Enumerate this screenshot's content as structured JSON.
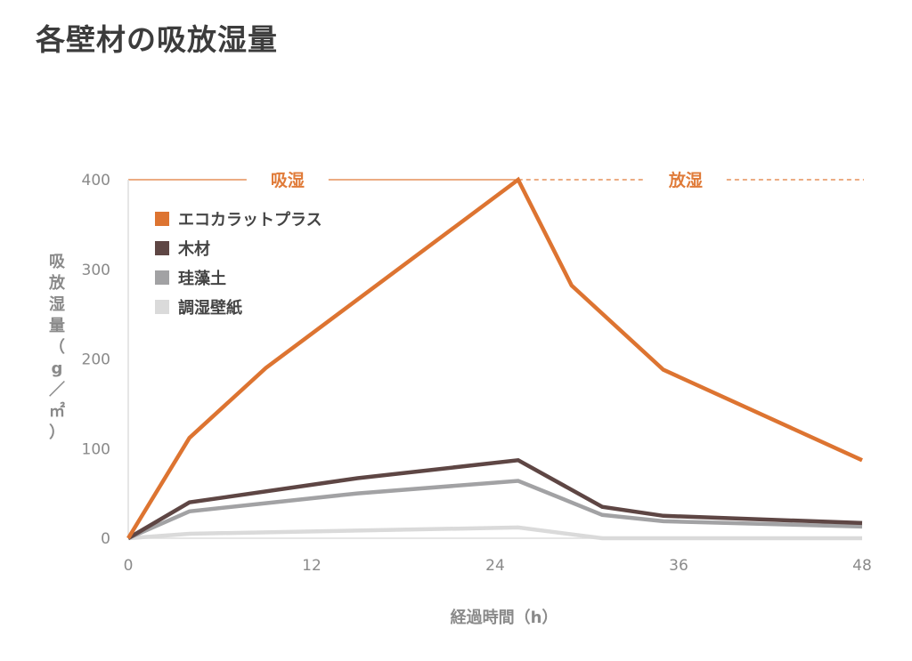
{
  "title": "各壁材の吸放湿量",
  "chart_data": {
    "type": "line",
    "xlabel": "経過時間（h）",
    "ylabel": "吸放湿量（g／㎡）",
    "xlim": [
      0,
      48
    ],
    "ylim": [
      0,
      400
    ],
    "xticks": [
      0,
      12,
      24,
      36,
      48
    ],
    "yticks": [
      0,
      100,
      200,
      300,
      400
    ],
    "legend_position": "top-left",
    "phases": [
      {
        "label": "吸湿",
        "from": 0,
        "to": 25.5,
        "style": "solid"
      },
      {
        "label": "放湿",
        "from": 25.5,
        "to": 48,
        "style": "dashed"
      }
    ],
    "phase_color": "#e07b39",
    "series": [
      {
        "name": "エコカラットプラス",
        "color": "#dd7431",
        "x": [
          0,
          4,
          9,
          25.5,
          29,
          35,
          48
        ],
        "y": [
          0,
          112,
          190,
          400,
          282,
          188,
          87
        ]
      },
      {
        "name": "木材",
        "color": "#5e4644",
        "x": [
          0,
          4,
          15,
          25.5,
          31,
          35,
          48
        ],
        "y": [
          0,
          40,
          67,
          87,
          35,
          25,
          17
        ]
      },
      {
        "name": "珪藻土",
        "color": "#a2a2a4",
        "x": [
          0,
          4,
          15,
          25.5,
          31,
          35,
          48
        ],
        "y": [
          0,
          30,
          50,
          64,
          26,
          19,
          13
        ]
      },
      {
        "name": "調湿壁紙",
        "color": "#dadada",
        "x": [
          0,
          4,
          25.5,
          31,
          48
        ],
        "y": [
          0,
          5,
          12,
          0,
          0
        ]
      }
    ]
  }
}
